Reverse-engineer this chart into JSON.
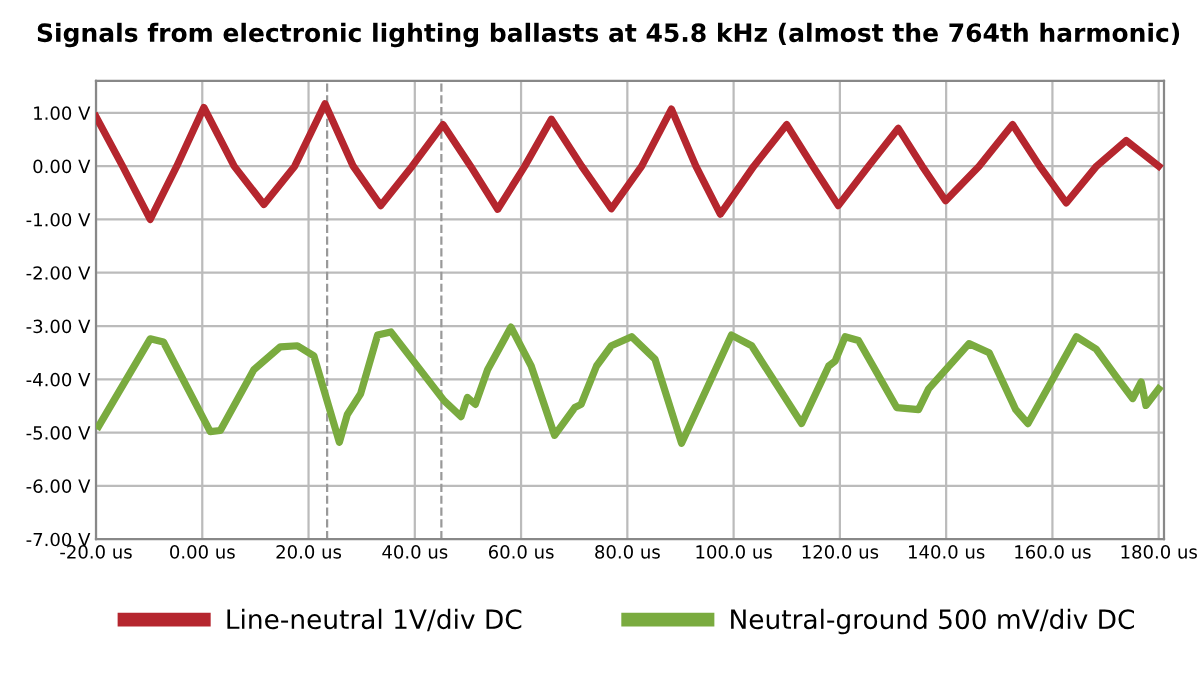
{
  "chart_data": {
    "type": "line",
    "title": "Signals from electronic lighting ballasts at 45.8 kHz (almost the 764th harmonic)",
    "xlim": [
      -20,
      181
    ],
    "xticks": [
      {
        "value": -20,
        "label": "-20.0 us"
      },
      {
        "value": 0,
        "label": "0.00 us"
      },
      {
        "value": 20,
        "label": "20.0 us"
      },
      {
        "value": 40,
        "label": "40.0 us"
      },
      {
        "value": 60,
        "label": "60.0 us"
      },
      {
        "value": 80,
        "label": "80.0 us"
      },
      {
        "value": 100,
        "label": "100.0 us"
      },
      {
        "value": 120,
        "label": "120.0 us"
      },
      {
        "value": 140,
        "label": "140.0 us"
      },
      {
        "value": 160,
        "label": "160.0 us"
      },
      {
        "value": 180,
        "label": "180.0 us"
      }
    ],
    "ylim": [
      -7,
      1.6
    ],
    "yticks": [
      {
        "value": -7,
        "label": "-7.00 V"
      },
      {
        "value": -6,
        "label": "-6.00 V"
      },
      {
        "value": -5,
        "label": "-5.00 V"
      },
      {
        "value": -4,
        "label": "-4.00 V"
      },
      {
        "value": -3,
        "label": "-3.00 V"
      },
      {
        "value": -2,
        "label": "-2.00 V"
      },
      {
        "value": -1,
        "label": "-1.00 V"
      },
      {
        "value": 0,
        "label": "0.00 V"
      },
      {
        "value": 1,
        "label": "1.00 V"
      }
    ],
    "grid": true,
    "legend": "bottom",
    "marker": "none",
    "line_style": "solid",
    "ref_lines": [
      {
        "axis": "x",
        "value": 23.5,
        "color": "#999999",
        "line_style": "dashed"
      },
      {
        "axis": "x",
        "value": 45,
        "color": "#999999",
        "line_style": "dashed"
      }
    ],
    "series": [
      {
        "name": "Line-neutral 1V/div DC",
        "color": "#b5262e",
        "x": [
          -20,
          -15,
          -9.8,
          -4.8,
          0.3,
          6.0,
          11.6,
          17.4,
          23.1,
          28.4,
          33.6,
          39.5,
          45.3,
          50.5,
          55.6,
          60.7,
          65.7,
          71.4,
          77,
          82.7,
          88.3,
          92.9,
          97.5,
          103.8,
          110,
          114.9,
          119.7,
          125.4,
          131,
          135.5,
          139.9,
          146.2,
          152.5,
          157.6,
          162.6,
          168.3,
          173.9,
          180
        ],
        "values": [
          0.93,
          0.0,
          -1.0,
          0.0,
          1.1,
          0.0,
          -0.72,
          0.0,
          1.17,
          0.0,
          -0.74,
          0.0,
          0.78,
          0.0,
          -0.81,
          0.0,
          0.88,
          0.0,
          -0.8,
          0.0,
          1.07,
          0.0,
          -0.9,
          0.0,
          0.78,
          0.0,
          -0.74,
          0.0,
          0.71,
          0.0,
          -0.65,
          0.0,
          0.78,
          0.0,
          -0.69,
          0.0,
          0.48,
          0.0
        ]
      },
      {
        "name": "Neutral-ground 500 mV/div DC",
        "color": "#7aab3f",
        "x": [
          -19.5,
          -9.8,
          -7.3,
          1.5,
          3.4,
          9.7,
          14.7,
          17.9,
          21.0,
          25.8,
          27.3,
          29.8,
          33.0,
          35.5,
          45.5,
          48.7,
          49.9,
          51.4,
          53.7,
          58.1,
          61.9,
          66.3,
          70.1,
          71.3,
          74.2,
          77,
          80.8,
          85.2,
          90.2,
          99.6,
          103.4,
          112.8,
          117.9,
          119.1,
          121,
          123.5,
          130.7,
          134.8,
          136.7,
          144.3,
          148.1,
          153.1,
          155.4,
          164.5,
          168.2,
          172,
          175.1,
          176.7,
          177.6,
          180
        ],
        "values": [
          -4.88,
          -3.24,
          -3.3,
          -4.98,
          -4.96,
          -3.82,
          -3.39,
          -3.37,
          -3.56,
          -5.18,
          -4.66,
          -4.27,
          -3.17,
          -3.11,
          -4.4,
          -4.7,
          -4.34,
          -4.47,
          -3.82,
          -3.02,
          -3.75,
          -5.05,
          -4.53,
          -4.47,
          -3.75,
          -3.37,
          -3.2,
          -3.62,
          -5.2,
          -3.17,
          -3.37,
          -4.83,
          -3.75,
          -3.66,
          -3.2,
          -3.27,
          -4.53,
          -4.57,
          -4.18,
          -3.33,
          -3.5,
          -4.57,
          -4.83,
          -3.2,
          -3.43,
          -3.95,
          -4.36,
          -4.05,
          -4.49,
          -4.18
        ]
      }
    ]
  }
}
